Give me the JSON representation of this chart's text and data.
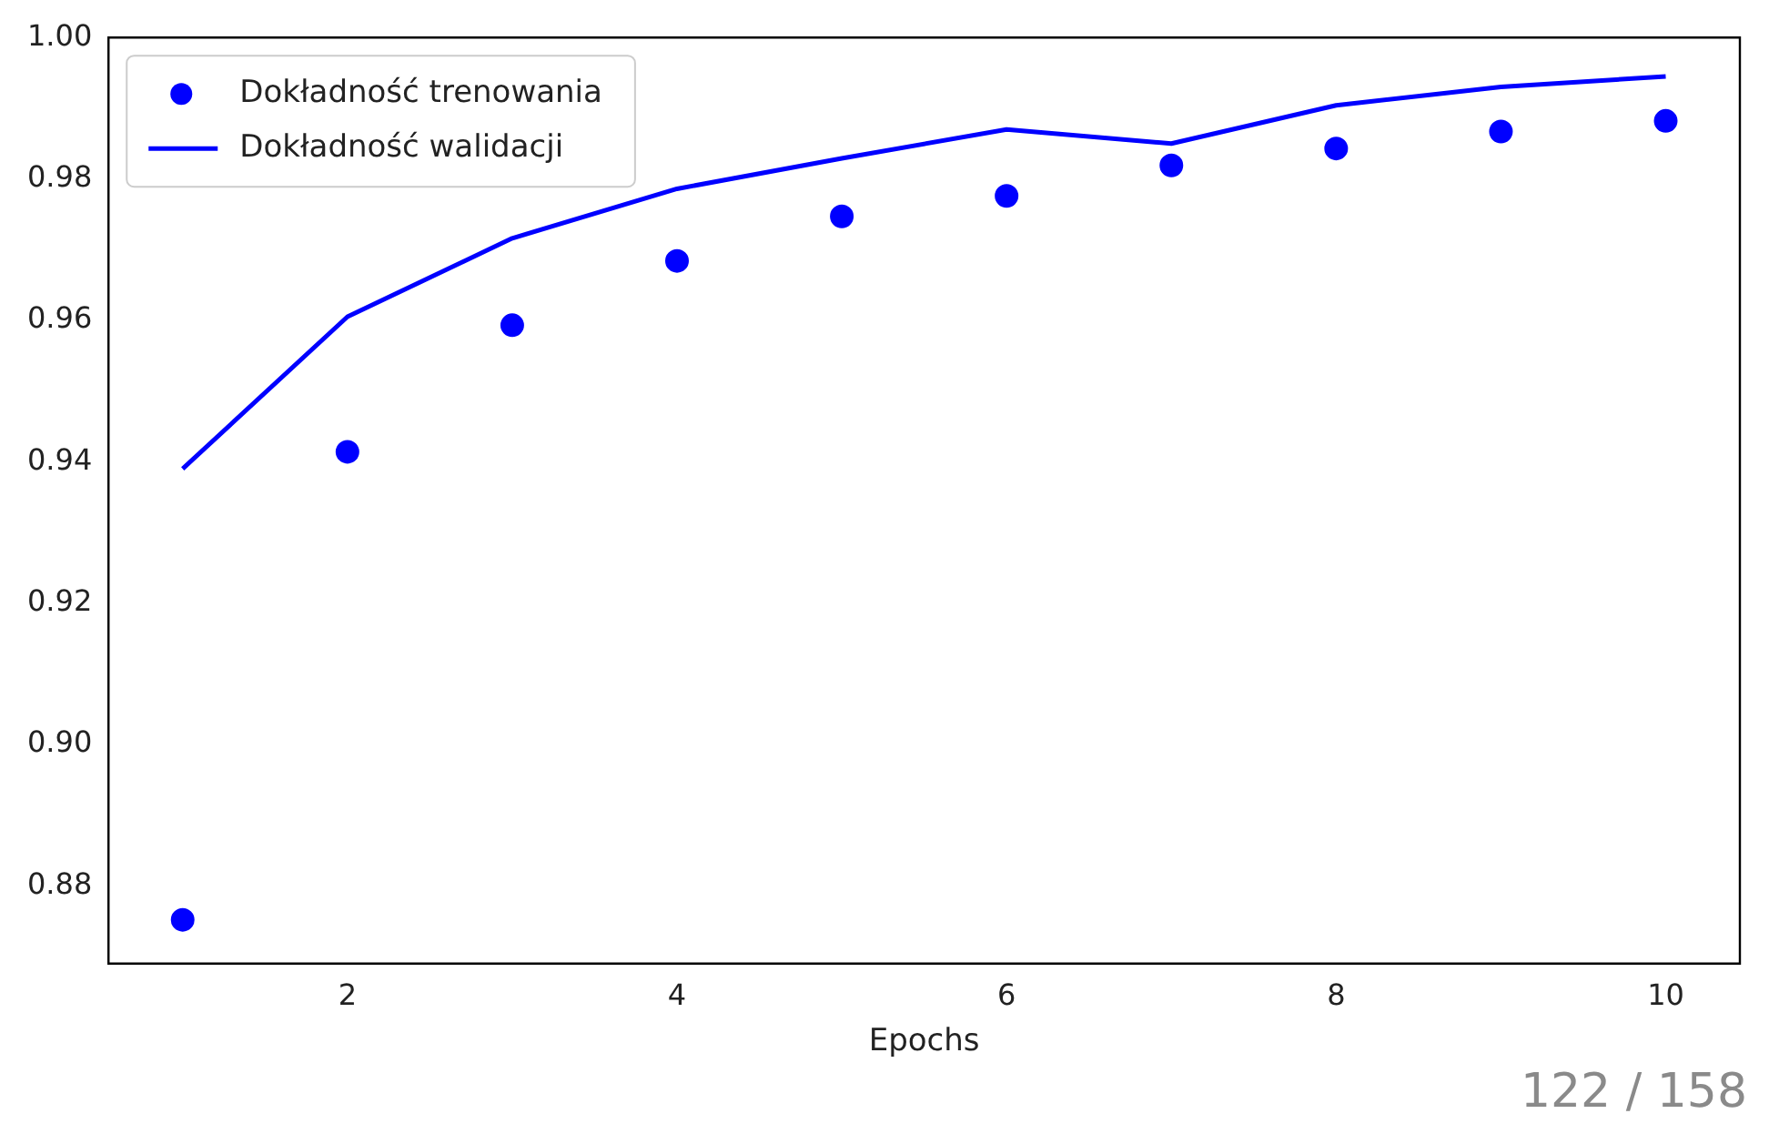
{
  "chart_data": {
    "type": "line",
    "xlabel": "Epochs",
    "x": [
      1,
      2,
      3,
      4,
      5,
      6,
      7,
      8,
      9,
      10
    ],
    "series": [
      {
        "name": "Dokładność trenowania",
        "type": "scatter",
        "marker": "circle",
        "color": "#0000ff",
        "values": [
          0.8752,
          0.9414,
          0.9593,
          0.9684,
          0.9747,
          0.9776,
          0.9819,
          0.9843,
          0.9867,
          0.9882
        ]
      },
      {
        "name": "Dokładność walidacji",
        "type": "line",
        "line_style": "solid",
        "color": "#0000ff",
        "values": [
          0.939,
          0.9605,
          0.9716,
          0.9786,
          0.9829,
          0.987,
          0.985,
          0.9904,
          0.993,
          0.9945
        ]
      }
    ],
    "xlim": [
      0.55,
      10.45
    ],
    "xticks": [
      2,
      4,
      6,
      8,
      10
    ],
    "ylim": [
      0.869,
      1.0
    ],
    "yticks": [
      0.88,
      {
        "value": 0.9,
        "label": "0.90"
      },
      0.92,
      0.94,
      0.96,
      0.98,
      {
        "value": 1.0,
        "label": "1.00"
      }
    ],
    "grid": false,
    "legend": "top left",
    "annotations": [
      "122 / 158"
    ]
  }
}
